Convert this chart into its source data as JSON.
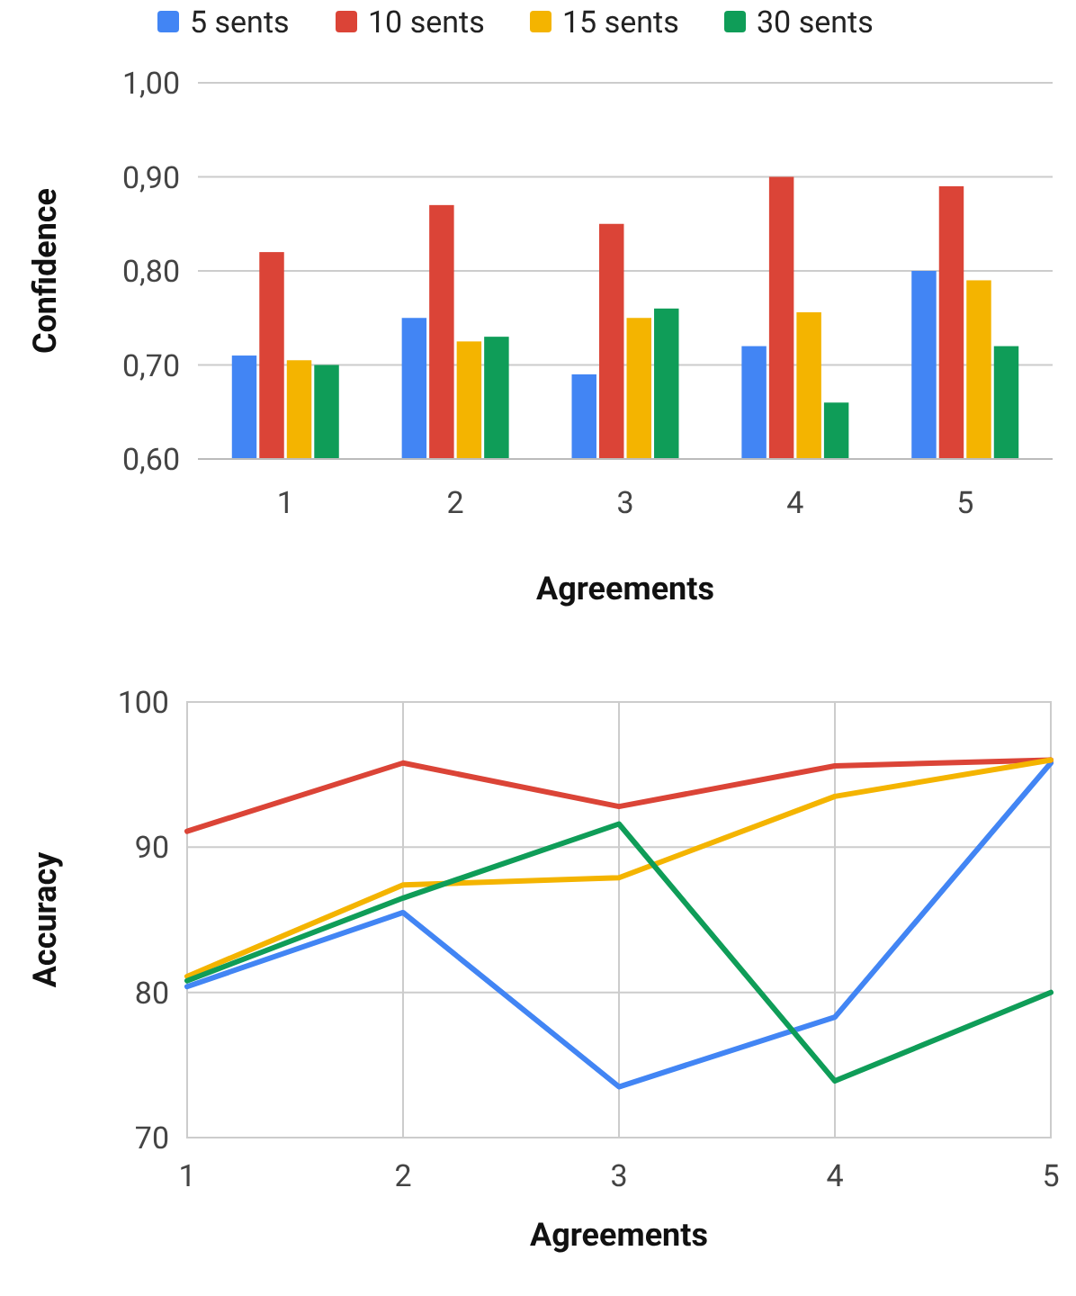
{
  "chart_data": [
    {
      "type": "bar",
      "xlabel": "Agreements",
      "ylabel": "Confidence",
      "categories": [
        "1",
        "2",
        "3",
        "4",
        "5"
      ],
      "ylim": [
        0.6,
        1.0
      ],
      "yticks": [
        {
          "value": 0.6,
          "label": "0,60"
        },
        {
          "value": 0.7,
          "label": "0,70"
        },
        {
          "value": 0.8,
          "label": "0,80"
        },
        {
          "value": 0.9,
          "label": "0,90"
        },
        {
          "value": 1.0,
          "label": "1,00"
        }
      ],
      "grid": "y",
      "legend": "top",
      "series": [
        {
          "name": "5 sents",
          "color": "#4285f4",
          "values": [
            0.71,
            0.75,
            0.69,
            0.72,
            0.8
          ]
        },
        {
          "name": "10 sents",
          "color": "#db4437",
          "values": [
            0.82,
            0.87,
            0.85,
            0.9,
            0.89
          ]
        },
        {
          "name": "15 sents",
          "color": "#f4b400",
          "values": [
            0.705,
            0.725,
            0.75,
            0.756,
            0.79
          ]
        },
        {
          "name": "30 sents",
          "color": "#0f9d58",
          "values": [
            0.7,
            0.73,
            0.76,
            0.66,
            0.72
          ]
        }
      ]
    },
    {
      "type": "line",
      "xlabel": "Agreements",
      "ylabel": "Accuracy",
      "x": [
        1,
        2,
        3,
        4,
        5
      ],
      "xlim": [
        1,
        5
      ],
      "xticks": [
        1,
        2,
        3,
        4,
        5
      ],
      "ylim": [
        70,
        100
      ],
      "yticks": [
        70,
        80,
        90,
        100
      ],
      "grid": true,
      "series": [
        {
          "color": "#4285f4",
          "values": [
            80.4,
            85.5,
            73.5,
            78.3,
            95.8
          ]
        },
        {
          "color": "#db4437",
          "values": [
            91.1,
            95.8,
            92.8,
            95.6,
            96.0
          ]
        },
        {
          "color": "#f4b400",
          "values": [
            81.1,
            87.4,
            87.9,
            93.5,
            96.0
          ]
        },
        {
          "color": "#0f9d58",
          "values": [
            80.8,
            86.5,
            91.6,
            73.9,
            80.0
          ]
        }
      ]
    }
  ]
}
